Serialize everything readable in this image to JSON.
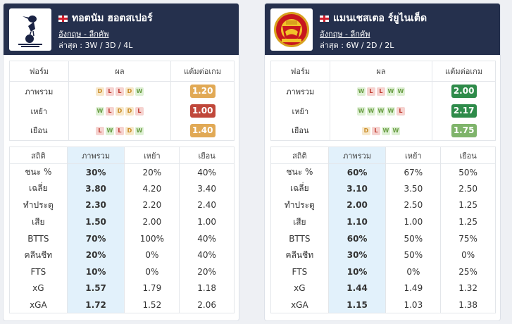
{
  "colors": {
    "header_bg": "#25304d",
    "overall_col_bg": "#e2f1fb",
    "ppg_red": "#c0473a",
    "ppg_orange": "#e1a955",
    "ppg_green_dark": "#2e8b4a",
    "ppg_green_light": "#7fb46b"
  },
  "teams": [
    {
      "logo_icon": "tottenham-crest-icon",
      "name": "ทอตนัม ฮอตสเปอร์",
      "league": "อังกฤษ - ลีกคัพ",
      "recent": "ล่าสุด : 3W / 3D / 4L",
      "form_headers": [
        "ฟอร์ม",
        "ผล",
        "แต้มต่อเกม"
      ],
      "form_rows": [
        {
          "label": "ภาพรวม",
          "results": [
            "D",
            "L",
            "L",
            "D",
            "W"
          ],
          "ppg": "1.20",
          "ppg_color": "#e1a955"
        },
        {
          "label": "เหย้า",
          "results": [
            "W",
            "L",
            "D",
            "D",
            "L"
          ],
          "ppg": "1.00",
          "ppg_color": "#c0473a"
        },
        {
          "label": "เยือน",
          "results": [
            "L",
            "W",
            "L",
            "D",
            "W"
          ],
          "ppg": "1.40",
          "ppg_color": "#e1a955"
        }
      ],
      "stat_headers": [
        "สถิติ",
        "ภาพรวม",
        "เหย้า",
        "เยือน"
      ],
      "stat_rows": [
        {
          "label": "ชนะ %",
          "overall": "30%",
          "home": "20%",
          "away": "40%"
        },
        {
          "label": "เฉลี่ย",
          "overall": "3.80",
          "home": "4.20",
          "away": "3.40"
        },
        {
          "label": "ทำประตู",
          "overall": "2.30",
          "home": "2.20",
          "away": "2.40"
        },
        {
          "label": "เสีย",
          "overall": "1.50",
          "home": "2.00",
          "away": "1.00"
        },
        {
          "label": "BTTS",
          "overall": "70%",
          "home": "100%",
          "away": "40%"
        },
        {
          "label": "คลีนชีท",
          "overall": "20%",
          "home": "0%",
          "away": "40%"
        },
        {
          "label": "FTS",
          "overall": "10%",
          "home": "0%",
          "away": "20%"
        },
        {
          "label": "xG",
          "overall": "1.57",
          "home": "1.79",
          "away": "1.18"
        },
        {
          "label": "xGA",
          "overall": "1.72",
          "home": "1.52",
          "away": "2.06"
        }
      ]
    },
    {
      "logo_icon": "manchester-united-crest-icon",
      "name": "แมนเชสเตอ ร์ยูไนเต็ด",
      "league": "อังกฤษ - ลีกคัพ",
      "recent": "ล่าสุด : 6W / 2D / 2L",
      "form_headers": [
        "ฟอร์ม",
        "ผล",
        "แต้มต่อเกม"
      ],
      "form_rows": [
        {
          "label": "ภาพรวม",
          "results": [
            "W",
            "L",
            "L",
            "W",
            "W"
          ],
          "ppg": "2.00",
          "ppg_color": "#2e8b4a"
        },
        {
          "label": "เหย้า",
          "results": [
            "W",
            "W",
            "W",
            "W",
            "L"
          ],
          "ppg": "2.17",
          "ppg_color": "#2e8b4a"
        },
        {
          "label": "เยือน",
          "results": [
            "D",
            "L",
            "W",
            "W"
          ],
          "ppg": "1.75",
          "ppg_color": "#7fb46b"
        }
      ],
      "stat_headers": [
        "สถิติ",
        "ภาพรวม",
        "เหย้า",
        "เยือน"
      ],
      "stat_rows": [
        {
          "label": "ชนะ %",
          "overall": "60%",
          "home": "67%",
          "away": "50%"
        },
        {
          "label": "เฉลี่ย",
          "overall": "3.10",
          "home": "3.50",
          "away": "2.50"
        },
        {
          "label": "ทำประตู",
          "overall": "2.00",
          "home": "2.50",
          "away": "1.25"
        },
        {
          "label": "เสีย",
          "overall": "1.10",
          "home": "1.00",
          "away": "1.25"
        },
        {
          "label": "BTTS",
          "overall": "60%",
          "home": "50%",
          "away": "75%"
        },
        {
          "label": "คลีนชีท",
          "overall": "30%",
          "home": "50%",
          "away": "0%"
        },
        {
          "label": "FTS",
          "overall": "10%",
          "home": "0%",
          "away": "25%"
        },
        {
          "label": "xG",
          "overall": "1.44",
          "home": "1.49",
          "away": "1.32"
        },
        {
          "label": "xGA",
          "overall": "1.15",
          "home": "1.03",
          "away": "1.38"
        }
      ]
    }
  ]
}
